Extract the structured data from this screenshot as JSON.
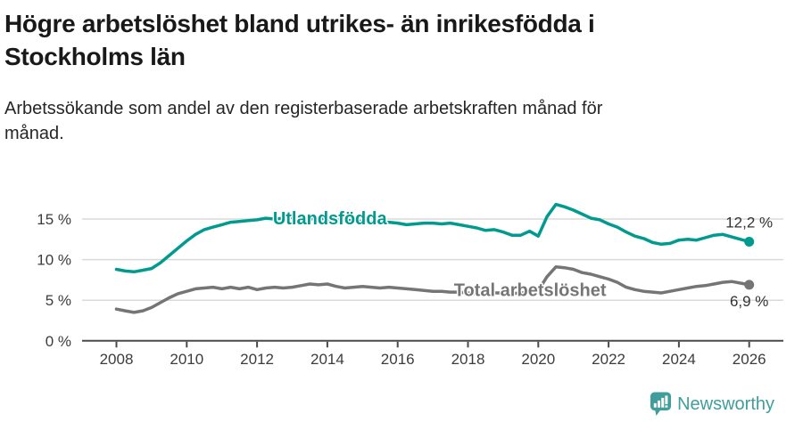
{
  "header": {
    "title_lines": [
      "Högre arbetslöshet bland utrikes- än inrikesfödda i",
      "Stockholms län"
    ],
    "subtitle_lines": [
      "Arbetssökande som andel av den registerbaserade arbetskraften månad för",
      "månad."
    ]
  },
  "footer": {
    "brand": "Newsworthy",
    "brand_color": "#3f9e9b"
  },
  "chart_data": {
    "type": "line",
    "title": "Högre arbetslöshet bland utrikes- än inrikesfödda i Stockholms län",
    "subtitle": "Arbetssökande som andel av den registerbaserade arbetskraften månad för månad.",
    "x_start": 2008,
    "x_interval_years": 0.25,
    "x_ticks": [
      2008,
      2010,
      2012,
      2014,
      2016,
      2018,
      2020,
      2022,
      2024,
      2026
    ],
    "x_tick_labels": [
      "2008",
      "2010",
      "2012",
      "2014",
      "2016",
      "2018",
      "2020",
      "2022",
      "2024",
      "2026"
    ],
    "y_ticks": [
      0,
      5,
      10,
      15
    ],
    "y_tick_labels": [
      "0 %",
      "5 %",
      "10 %",
      "15 %"
    ],
    "ylim": [
      0,
      17.5
    ],
    "grid": "horizontal",
    "legend_position": "inline-labels",
    "axis_color": "#4a4a4a",
    "grid_color": "#dadada",
    "tick_label_color": "#3c3c3c",
    "value_label_color": "#333333",
    "series": [
      {
        "name": "Utlandsfödda",
        "color": "#009b8e",
        "end_label": "12,2 %",
        "end_label_position": "above",
        "label_anchor": {
          "year": 2012.45,
          "pct": 15.0
        },
        "values": [
          8.8,
          8.6,
          8.5,
          8.7,
          8.9,
          9.6,
          10.5,
          11.4,
          12.3,
          13.1,
          13.7,
          14.0,
          14.3,
          14.6,
          14.7,
          14.8,
          14.9,
          15.1,
          15.0,
          15.1,
          15.2,
          15.1,
          15.0,
          15.1,
          15.0,
          14.9,
          14.8,
          14.8,
          14.7,
          14.6,
          14.5,
          14.6,
          14.5,
          14.3,
          14.4,
          14.5,
          14.5,
          14.4,
          14.5,
          14.3,
          14.1,
          13.9,
          13.6,
          13.7,
          13.4,
          13.0,
          13.0,
          13.5,
          12.9,
          15.3,
          16.8,
          16.5,
          16.1,
          15.6,
          15.1,
          14.9,
          14.4,
          14.0,
          13.4,
          12.9,
          12.6,
          12.1,
          11.9,
          12.0,
          12.4,
          12.5,
          12.4,
          12.7,
          13.0,
          13.1,
          12.8,
          12.5,
          12.2
        ]
      },
      {
        "name": "Total arbetslöshet",
        "color": "#757575",
        "end_label": "6,9 %",
        "end_label_position": "below",
        "label_anchor": {
          "year": 2017.6,
          "pct": 6.2
        },
        "values": [
          3.9,
          3.7,
          3.5,
          3.7,
          4.1,
          4.7,
          5.3,
          5.8,
          6.1,
          6.4,
          6.5,
          6.6,
          6.4,
          6.6,
          6.4,
          6.6,
          6.3,
          6.5,
          6.6,
          6.5,
          6.6,
          6.8,
          7.0,
          6.9,
          7.0,
          6.7,
          6.5,
          6.6,
          6.7,
          6.6,
          6.5,
          6.6,
          6.5,
          6.4,
          6.3,
          6.2,
          6.1,
          6.1,
          6.0,
          6.0,
          5.9,
          5.8,
          5.8,
          5.9,
          5.9,
          5.8,
          5.9,
          6.0,
          6.2,
          7.9,
          9.1,
          9.0,
          8.8,
          8.4,
          8.2,
          7.9,
          7.6,
          7.2,
          6.6,
          6.3,
          6.1,
          6.0,
          5.9,
          6.1,
          6.3,
          6.5,
          6.7,
          6.8,
          7.0,
          7.2,
          7.3,
          7.1,
          6.9
        ]
      }
    ]
  }
}
